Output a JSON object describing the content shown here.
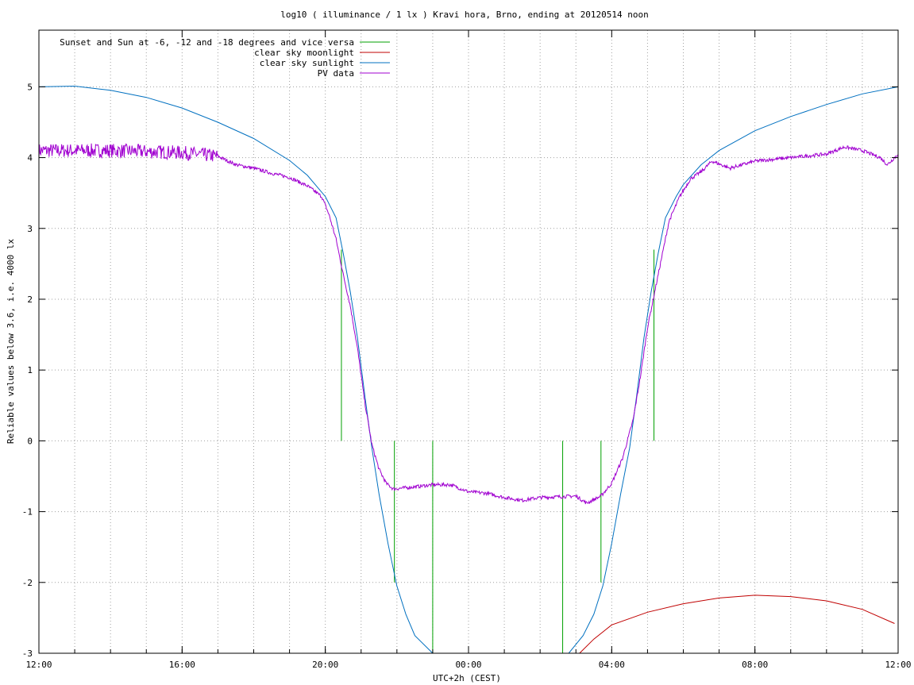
{
  "chart_data": {
    "type": "line",
    "title": "log10 ( illuminance / 1 lx ) Kravi hora, Brno, ending at 20120514 noon",
    "xlabel": "UTC+2h (CEST)",
    "ylabel": "Reliable values below 3.6, i.e. 4000 lx",
    "x_range_hours": [
      12,
      36
    ],
    "xlim": [
      "12:00",
      "12:00"
    ],
    "ylim": [
      -3,
      5.8
    ],
    "x_ticks": [
      {
        "label": "12:00",
        "hour": 12
      },
      {
        "label": "16:00",
        "hour": 16
      },
      {
        "label": "20:00",
        "hour": 20
      },
      {
        "label": "00:00",
        "hour": 24
      },
      {
        "label": "04:00",
        "hour": 28
      },
      {
        "label": "08:00",
        "hour": 32
      },
      {
        "label": "12:00",
        "hour": 36
      }
    ],
    "y_ticks": [
      {
        "label": "5",
        "value": 5
      },
      {
        "label": "4",
        "value": 4
      },
      {
        "label": "3",
        "value": 3
      },
      {
        "label": "2",
        "value": 2
      },
      {
        "label": "1",
        "value": 1
      },
      {
        "label": "0",
        "value": 0
      },
      {
        "label": "-1",
        "value": -1
      },
      {
        "label": "-2",
        "value": -2
      },
      {
        "label": "-3",
        "value": -3
      }
    ],
    "grid": true,
    "legend_position": "top-left",
    "series": [
      {
        "name": "Sunset and Sun at -6, -12 and -18 degrees and vice versa",
        "color": "#00a000",
        "kind": "vlines",
        "lines": [
          {
            "x": 20.45,
            "y0": 0,
            "y1": 2.7
          },
          {
            "x": 21.93,
            "y0": -2,
            "y1": 0
          },
          {
            "x": 23.0,
            "y0": -3,
            "y1": 0
          },
          {
            "x": 26.63,
            "y0": -3,
            "y1": 0
          },
          {
            "x": 27.7,
            "y0": -2,
            "y1": 0
          },
          {
            "x": 29.18,
            "y0": 0,
            "y1": 2.7
          }
        ]
      },
      {
        "name": "clear sky moonlight",
        "color": "#c00000",
        "kind": "line",
        "points": [
          [
            27.1,
            -3.0
          ],
          [
            27.5,
            -2.8
          ],
          [
            28.0,
            -2.6
          ],
          [
            29.0,
            -2.42
          ],
          [
            30.0,
            -2.3
          ],
          [
            31.0,
            -2.22
          ],
          [
            32.0,
            -2.18
          ],
          [
            33.0,
            -2.2
          ],
          [
            34.0,
            -2.26
          ],
          [
            35.0,
            -2.38
          ],
          [
            35.9,
            -2.58
          ]
        ]
      },
      {
        "name": "clear sky sunlight",
        "color": "#0070c0",
        "kind": "line",
        "points": [
          [
            12.0,
            5.0
          ],
          [
            13.0,
            5.01
          ],
          [
            14.0,
            4.95
          ],
          [
            15.0,
            4.85
          ],
          [
            16.0,
            4.7
          ],
          [
            17.0,
            4.5
          ],
          [
            18.0,
            4.27
          ],
          [
            19.0,
            3.96
          ],
          [
            19.5,
            3.75
          ],
          [
            20.0,
            3.45
          ],
          [
            20.3,
            3.15
          ],
          [
            20.5,
            2.65
          ],
          [
            20.7,
            2.1
          ],
          [
            20.9,
            1.45
          ],
          [
            21.1,
            0.65
          ],
          [
            21.3,
            -0.1
          ],
          [
            21.5,
            -0.75
          ],
          [
            21.75,
            -1.45
          ],
          [
            22.0,
            -2.05
          ],
          [
            22.25,
            -2.45
          ],
          [
            22.5,
            -2.75
          ],
          [
            23.0,
            -3.0
          ],
          [
            26.8,
            -3.0
          ],
          [
            27.2,
            -2.75
          ],
          [
            27.5,
            -2.45
          ],
          [
            27.75,
            -2.05
          ],
          [
            28.0,
            -1.45
          ],
          [
            28.25,
            -0.75
          ],
          [
            28.5,
            -0.1
          ],
          [
            28.7,
            0.65
          ],
          [
            28.9,
            1.45
          ],
          [
            29.1,
            2.1
          ],
          [
            29.3,
            2.65
          ],
          [
            29.5,
            3.15
          ],
          [
            29.8,
            3.45
          ],
          [
            30.0,
            3.62
          ],
          [
            30.5,
            3.9
          ],
          [
            31.0,
            4.1
          ],
          [
            32.0,
            4.38
          ],
          [
            33.0,
            4.58
          ],
          [
            34.0,
            4.75
          ],
          [
            35.0,
            4.9
          ],
          [
            36.0,
            5.0
          ]
        ]
      },
      {
        "name": "PV data",
        "color": "#a000d0",
        "kind": "line",
        "points": [
          [
            12.0,
            4.1
          ],
          [
            14.0,
            4.1
          ],
          [
            16.0,
            4.07
          ],
          [
            17.0,
            4.02
          ],
          [
            17.5,
            3.9
          ],
          [
            18.0,
            3.85
          ],
          [
            18.5,
            3.78
          ],
          [
            19.0,
            3.72
          ],
          [
            19.5,
            3.6
          ],
          [
            19.9,
            3.45
          ],
          [
            20.1,
            3.2
          ],
          [
            20.3,
            2.85
          ],
          [
            20.5,
            2.35
          ],
          [
            20.7,
            1.9
          ],
          [
            20.9,
            1.3
          ],
          [
            21.1,
            0.55
          ],
          [
            21.3,
            -0.05
          ],
          [
            21.5,
            -0.4
          ],
          [
            21.7,
            -0.6
          ],
          [
            21.9,
            -0.68
          ],
          [
            22.5,
            -0.65
          ],
          [
            23.0,
            -0.62
          ],
          [
            23.5,
            -0.62
          ],
          [
            24.0,
            -0.72
          ],
          [
            24.5,
            -0.74
          ],
          [
            25.0,
            -0.8
          ],
          [
            25.5,
            -0.84
          ],
          [
            26.0,
            -0.8
          ],
          [
            26.5,
            -0.79
          ],
          [
            27.0,
            -0.78
          ],
          [
            27.3,
            -0.88
          ],
          [
            27.7,
            -0.78
          ],
          [
            28.0,
            -0.6
          ],
          [
            28.3,
            -0.25
          ],
          [
            28.6,
            0.3
          ],
          [
            28.8,
            0.9
          ],
          [
            29.0,
            1.6
          ],
          [
            29.2,
            2.1
          ],
          [
            29.4,
            2.6
          ],
          [
            29.6,
            3.1
          ],
          [
            29.9,
            3.45
          ],
          [
            30.2,
            3.7
          ],
          [
            30.5,
            3.8
          ],
          [
            30.8,
            3.95
          ],
          [
            31.3,
            3.85
          ],
          [
            32.0,
            3.95
          ],
          [
            33.0,
            4.0
          ],
          [
            34.0,
            4.05
          ],
          [
            34.5,
            4.15
          ],
          [
            35.0,
            4.1
          ],
          [
            35.5,
            4.0
          ],
          [
            35.7,
            3.9
          ],
          [
            36.0,
            4.05
          ]
        ],
        "noise_until_hour": 17.0
      }
    ]
  }
}
